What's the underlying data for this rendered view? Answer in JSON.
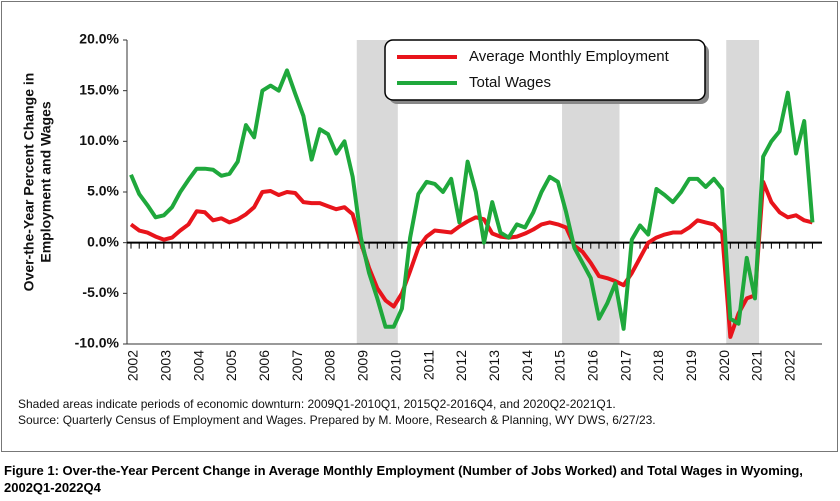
{
  "chart_data": {
    "type": "line",
    "y_label": [
      "Over-the-Year Percent Change in",
      "Employment and Wages"
    ],
    "categories": [
      "2002",
      null,
      null,
      null,
      "2003",
      null,
      null,
      null,
      "2004",
      null,
      null,
      null,
      "2005",
      null,
      null,
      null,
      "2006",
      null,
      null,
      null,
      "2007",
      null,
      null,
      null,
      "2008",
      null,
      null,
      null,
      "2009",
      null,
      null,
      null,
      "2010",
      null,
      null,
      null,
      "2011",
      null,
      null,
      null,
      "2012",
      null,
      null,
      null,
      "2013",
      null,
      null,
      null,
      "2014",
      null,
      null,
      null,
      "2015",
      null,
      null,
      null,
      "2016",
      null,
      null,
      null,
      "2017",
      null,
      null,
      null,
      "2018",
      null,
      null,
      null,
      "2019",
      null,
      null,
      null,
      "2020",
      null,
      null,
      null,
      "2021",
      null,
      null,
      null,
      "2022",
      null,
      null,
      null
    ],
    "series": [
      {
        "name": "Average Monthly Employment",
        "color": "#e8141b",
        "values": [
          1.8,
          1.2,
          1.0,
          0.6,
          0.3,
          0.5,
          1.2,
          1.8,
          3.1,
          3.0,
          2.2,
          2.4,
          2.0,
          2.3,
          2.8,
          3.5,
          5.0,
          5.1,
          4.7,
          5.0,
          4.9,
          4.0,
          3.9,
          3.9,
          3.6,
          3.3,
          3.5,
          2.8,
          0.0,
          -2.5,
          -4.5,
          -5.7,
          -6.3,
          -5.0,
          -2.8,
          -0.5,
          0.6,
          1.2,
          1.1,
          1.0,
          1.6,
          2.1,
          2.5,
          2.3,
          0.9,
          0.6,
          0.5,
          0.6,
          0.9,
          1.3,
          1.8,
          2.0,
          1.8,
          1.5,
          -0.3,
          -0.9,
          -2.0,
          -3.3,
          -3.5,
          -3.8,
          -4.2,
          -3.0,
          -1.5,
          0.0,
          0.5,
          0.8,
          1.0,
          1.0,
          1.5,
          2.2,
          2.0,
          1.8,
          1.0,
          -9.3,
          -7.0,
          -5.5,
          -5.2,
          6.0,
          4.0,
          3.0,
          2.5,
          2.7,
          2.2,
          2.0
        ]
      },
      {
        "name": "Total Wages",
        "color": "#1fa83c",
        "values": [
          6.7,
          4.8,
          3.7,
          2.5,
          2.7,
          3.5,
          5.0,
          6.2,
          7.3,
          7.3,
          7.2,
          6.6,
          6.8,
          8.0,
          11.6,
          10.4,
          15.0,
          15.5,
          15.0,
          17.0,
          14.7,
          12.5,
          8.2,
          11.2,
          10.7,
          8.8,
          10.0,
          6.5,
          0.5,
          -3.0,
          -5.5,
          -8.3,
          -8.3,
          -6.5,
          0.5,
          4.8,
          6.0,
          5.8,
          5.0,
          6.3,
          2.0,
          8.0,
          5.0,
          0.0,
          4.0,
          1.0,
          0.5,
          1.8,
          1.5,
          3.0,
          5.0,
          6.5,
          6.0,
          3.0,
          -0.5,
          -2.0,
          -3.5,
          -7.5,
          -6.0,
          -4.0,
          -8.5,
          0.3,
          1.7,
          0.8,
          5.3,
          4.7,
          4.0,
          5.0,
          6.3,
          6.3,
          5.5,
          6.3,
          5.3,
          -7.5,
          -8.0,
          -1.5,
          -5.5,
          8.5,
          10.0,
          11.0,
          14.8,
          8.8,
          12.0,
          2.0
        ]
      }
    ],
    "ylim": [
      -10,
      20
    ],
    "yticks": [
      {
        "value": -10,
        "label": "-10.0%"
      },
      {
        "value": -5,
        "label": "-5.0%"
      },
      {
        "value": 0,
        "label": "0.0%"
      },
      {
        "value": 5,
        "label": "5.0%"
      },
      {
        "value": 10,
        "label": "10.0%"
      },
      {
        "value": 15,
        "label": "15.0%"
      },
      {
        "value": 20,
        "label": "20.0%"
      }
    ],
    "shaded": [
      [
        "2009Q1",
        "2010Q1"
      ],
      [
        "2015Q2",
        "2016Q4"
      ],
      [
        "2020Q2",
        "2021Q1"
      ]
    ],
    "shade_color": "#d9d9d9",
    "legend": "top-center"
  },
  "notes": [
    "Shaded areas indicate periods of economic downturn: 2009Q1-2010Q1, 2015Q2-2016Q4, and 2020Q2-2021Q1.",
    "Source: Quarterly Census of Employment and Wages. Prepared by M. Moore, Research & Planning, WY DWS, 6/27/23."
  ],
  "caption": "Figure 1: Over-the-Year Percent Change in Average Monthly Employment (Number of Jobs Worked) and Total Wages in Wyoming, 2002Q1-2022Q4"
}
